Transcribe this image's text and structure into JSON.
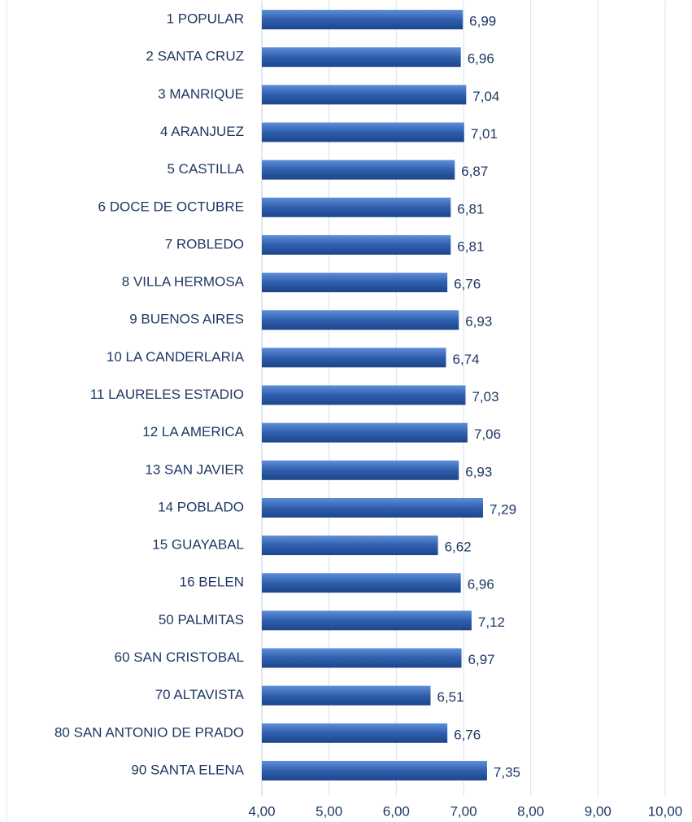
{
  "chart_data": {
    "type": "bar",
    "orientation": "horizontal",
    "categories": [
      "1 POPULAR",
      "2 SANTA CRUZ",
      "3 MANRIQUE",
      "4 ARANJUEZ",
      "5 CASTILLA",
      "6 DOCE DE OCTUBRE",
      "7 ROBLEDO",
      "8 VILLA HERMOSA",
      "9 BUENOS AIRES",
      "10 LA CANDERLARIA",
      "11 LAURELES ESTADIO",
      "12 LA AMERICA",
      "13 SAN JAVIER",
      "14 POBLADO",
      "15 GUAYABAL",
      "16 BELEN",
      "50 PALMITAS",
      "60 SAN CRISTOBAL",
      "70 ALTAVISTA",
      "80 SAN ANTONIO DE PRADO",
      "90 SANTA ELENA"
    ],
    "values": [
      6.99,
      6.96,
      7.04,
      7.01,
      6.87,
      6.81,
      6.81,
      6.76,
      6.93,
      6.74,
      7.03,
      7.06,
      6.93,
      7.29,
      6.62,
      6.96,
      7.12,
      6.97,
      6.51,
      6.76,
      7.35
    ],
    "value_labels": [
      "6,99",
      "6,96",
      "7,04",
      "7,01",
      "6,87",
      "6,81",
      "6,81",
      "6,76",
      "6,93",
      "6,74",
      "7,03",
      "7,06",
      "6,93",
      "7,29",
      "6,62",
      "6,96",
      "7,12",
      "6,97",
      "6,51",
      "6,76",
      "7,35"
    ],
    "color": "#2f5fae",
    "xlim": [
      4,
      10
    ],
    "xticks": [
      {
        "value": 4,
        "label": "4,00"
      },
      {
        "value": 5,
        "label": "5,00"
      },
      {
        "value": 6,
        "label": "6,00"
      },
      {
        "value": 7,
        "label": "7,00"
      },
      {
        "value": 8,
        "label": "8,00"
      },
      {
        "value": 9,
        "label": "9,00"
      },
      {
        "value": 10,
        "label": "10,00"
      }
    ],
    "grid": true
  }
}
